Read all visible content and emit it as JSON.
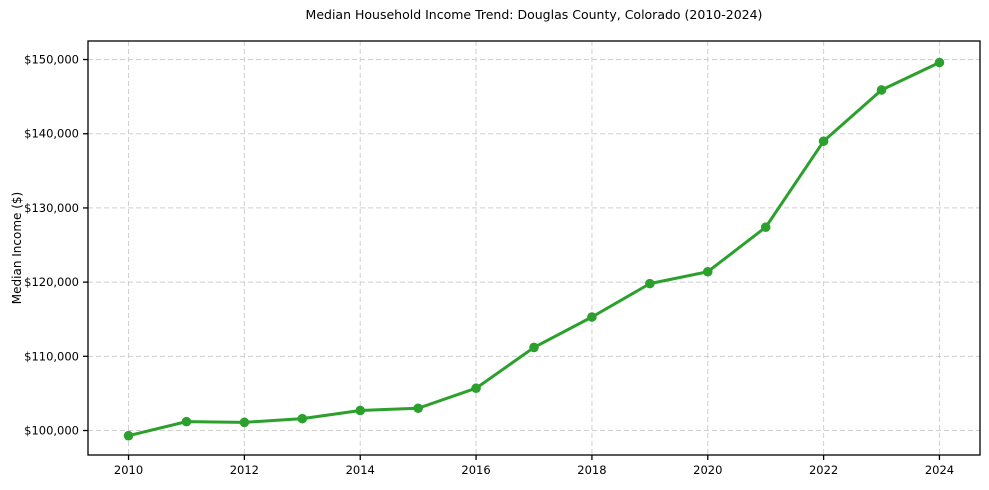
{
  "chart_data": {
    "type": "line",
    "title": "Median Household Income Trend: Douglas County, Colorado (2010-2024)",
    "xlabel": "",
    "ylabel": "Median Income ($)",
    "x": [
      2010,
      2011,
      2012,
      2013,
      2014,
      2015,
      2016,
      2017,
      2018,
      2019,
      2020,
      2021,
      2022,
      2023,
      2024
    ],
    "values": [
      99300,
      101200,
      101100,
      101600,
      102700,
      103000,
      105700,
      111200,
      115300,
      119800,
      121400,
      127400,
      139000,
      145900,
      149600
    ],
    "x_ticks": [
      2010,
      2012,
      2014,
      2016,
      2018,
      2020,
      2022,
      2024
    ],
    "x_tick_labels": [
      "2010",
      "2012",
      "2014",
      "2016",
      "2018",
      "2020",
      "2022",
      "2024"
    ],
    "y_ticks": [
      100000,
      110000,
      120000,
      130000,
      140000,
      150000
    ],
    "y_tick_labels": [
      "$100,000",
      "$110,000",
      "$120,000",
      "$130,000",
      "$140,000",
      "$150,000"
    ],
    "xlim": [
      2009.3,
      2024.7
    ],
    "ylim": [
      96700,
      152500
    ],
    "grid": true,
    "grid_style": "dashed",
    "legend": false,
    "colors": {
      "line": "#2ca02c",
      "marker": "#2ca02c",
      "grid": "#cfcfcf",
      "spine": "#000000",
      "text": "#000000",
      "background": "#ffffff"
    }
  }
}
